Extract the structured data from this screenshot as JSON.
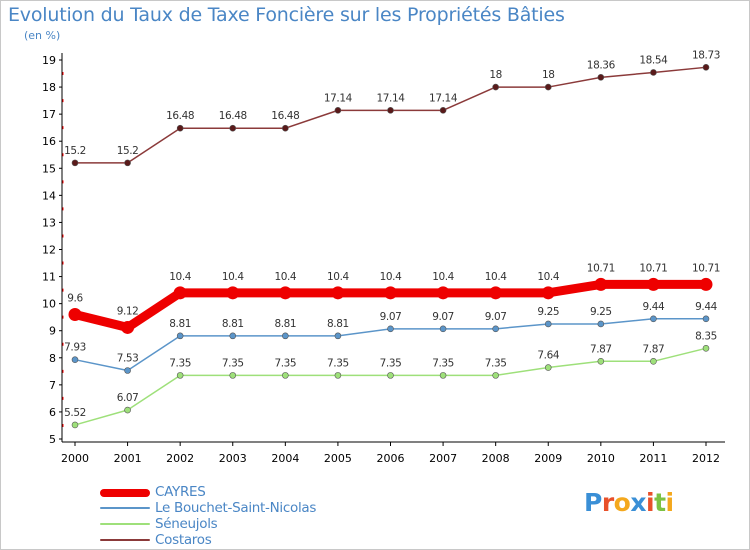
{
  "chart_data": {
    "type": "line",
    "title": "Evolution du Taux de Taxe Foncière sur les Propriétés Bâties",
    "ylabel": "(en %)",
    "xlabel": "",
    "x": [
      "2000",
      "2001",
      "2002",
      "2003",
      "2004",
      "2005",
      "2006",
      "2007",
      "2008",
      "2009",
      "2010",
      "2011",
      "2012"
    ],
    "ylim": [
      5,
      19
    ],
    "yticks": [
      5,
      6,
      7,
      8,
      9,
      10,
      11,
      12,
      13,
      14,
      15,
      16,
      17,
      18,
      19
    ],
    "series": [
      {
        "name": "CAYRES",
        "color": "#ee0000",
        "values": [
          9.6,
          9.12,
          10.4,
          10.4,
          10.4,
          10.4,
          10.4,
          10.4,
          10.4,
          10.4,
          10.71,
          10.71,
          10.71
        ],
        "labels": [
          "9.6",
          "9.12",
          "10.4",
          "10.4",
          "10.4",
          "10.4",
          "10.4",
          "10.4",
          "10.4",
          "10.4",
          "10.71",
          "10.71",
          "10.71"
        ]
      },
      {
        "name": "Le Bouchet-Saint-Nicolas",
        "color": "#5b95c9",
        "values": [
          7.93,
          7.53,
          8.81,
          8.81,
          8.81,
          8.81,
          9.07,
          9.07,
          9.07,
          9.25,
          9.25,
          9.44,
          9.44
        ],
        "labels": [
          "7.93",
          "7.53",
          "8.81",
          "8.81",
          "8.81",
          "8.81",
          "9.07",
          "9.07",
          "9.07",
          "9.25",
          "9.25",
          "9.44",
          "9.44"
        ]
      },
      {
        "name": "Séneujols",
        "color": "#9ee07a",
        "values": [
          5.52,
          6.07,
          7.35,
          7.35,
          7.35,
          7.35,
          7.35,
          7.35,
          7.35,
          7.64,
          7.87,
          7.87,
          8.35
        ],
        "labels": [
          "5.52",
          "6.07",
          "7.35",
          "7.35",
          "7.35",
          "7.35",
          "7.35",
          "7.35",
          "7.35",
          "7.64",
          "7.87",
          "7.87",
          "8.35"
        ]
      },
      {
        "name": "Costaros",
        "color": "#8b3a3a",
        "values": [
          15.2,
          15.2,
          16.48,
          16.48,
          16.48,
          17.14,
          17.14,
          17.14,
          18,
          18,
          18.36,
          18.54,
          18.73
        ],
        "labels": [
          "15.2",
          "15.2",
          "16.48",
          "16.48",
          "16.48",
          "17.14",
          "17.14",
          "17.14",
          "18",
          "18",
          "18.36",
          "18.54",
          "18.73"
        ]
      }
    ],
    "legend": "bottom-left",
    "grid": false
  },
  "logo": {
    "letters": [
      "P",
      "r",
      "o",
      "x",
      "i",
      "t",
      "i"
    ],
    "colors": [
      "#3a8fd6",
      "#e8502a",
      "#f4a81d",
      "#3a8fd6",
      "#e8502a",
      "#7cc243",
      "#f4a81d"
    ]
  }
}
